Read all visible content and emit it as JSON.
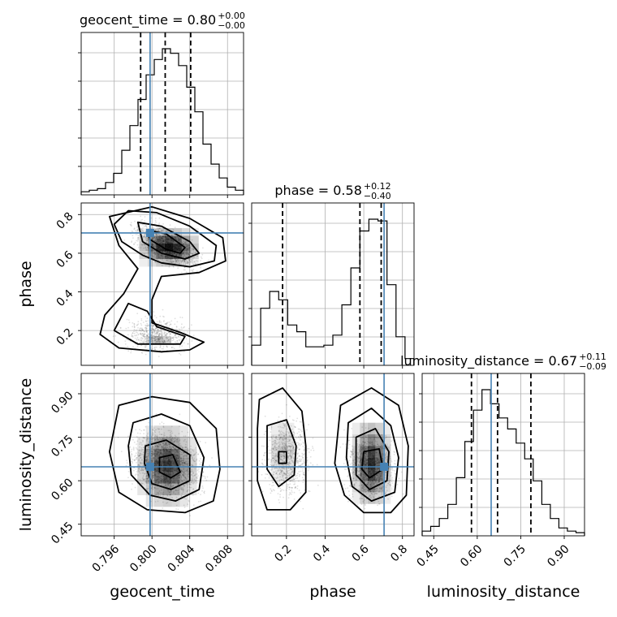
{
  "chart_data": {
    "type": "corner",
    "truth_color": "#4682b4",
    "parameters": [
      {
        "name": "geocent_time",
        "truth": 0.7998,
        "title": {
          "text": "geocent_time = 0.80",
          "plus": "+0.00",
          "minus": "−0.00"
        },
        "quantiles": [
          0.7988,
          0.8014,
          0.8041
        ],
        "range": [
          0.7925,
          0.8097
        ],
        "ticks": [
          0.796,
          0.8,
          0.804,
          0.808
        ],
        "tick_labels": [
          "0.796",
          "0.800",
          "0.804",
          "0.808"
        ],
        "hist": [
          2,
          3,
          4,
          8,
          14,
          29,
          45,
          62,
          78,
          88,
          95,
          92,
          84,
          70,
          54,
          33,
          20,
          11,
          5,
          3
        ]
      },
      {
        "name": "phase",
        "truth": 0.705,
        "title": {
          "text": "phase = 0.58",
          "plus": "+0.12",
          "minus": "−0.40"
        },
        "quantiles": [
          0.18,
          0.58,
          0.69
        ],
        "range": [
          0.02,
          0.86
        ],
        "ticks": [
          0.2,
          0.4,
          0.6,
          0.8
        ],
        "tick_labels": [
          "0.2",
          "0.4",
          "0.6",
          "0.8"
        ],
        "hist": [
          12,
          34,
          44,
          39,
          24,
          20,
          11,
          11,
          12,
          18,
          36,
          58,
          80,
          87,
          86,
          48,
          17,
          4
        ]
      },
      {
        "name": "luminosity_distance",
        "truth": 0.648,
        "title": {
          "text": "luminosity_distance = 0.67",
          "plus": "+0.11",
          "minus": "−0.09"
        },
        "quantiles": [
          0.58,
          0.67,
          0.785
        ],
        "range": [
          0.41,
          0.97
        ],
        "ticks": [
          0.45,
          0.6,
          0.75,
          0.9
        ],
        "tick_labels": [
          "0.45",
          "0.60",
          "0.75",
          "0.90"
        ],
        "hist": [
          3,
          6,
          11,
          20,
          37,
          60,
          80,
          93,
          84,
          75,
          68,
          59,
          49,
          35,
          20,
          11,
          5,
          3,
          2
        ]
      }
    ]
  }
}
